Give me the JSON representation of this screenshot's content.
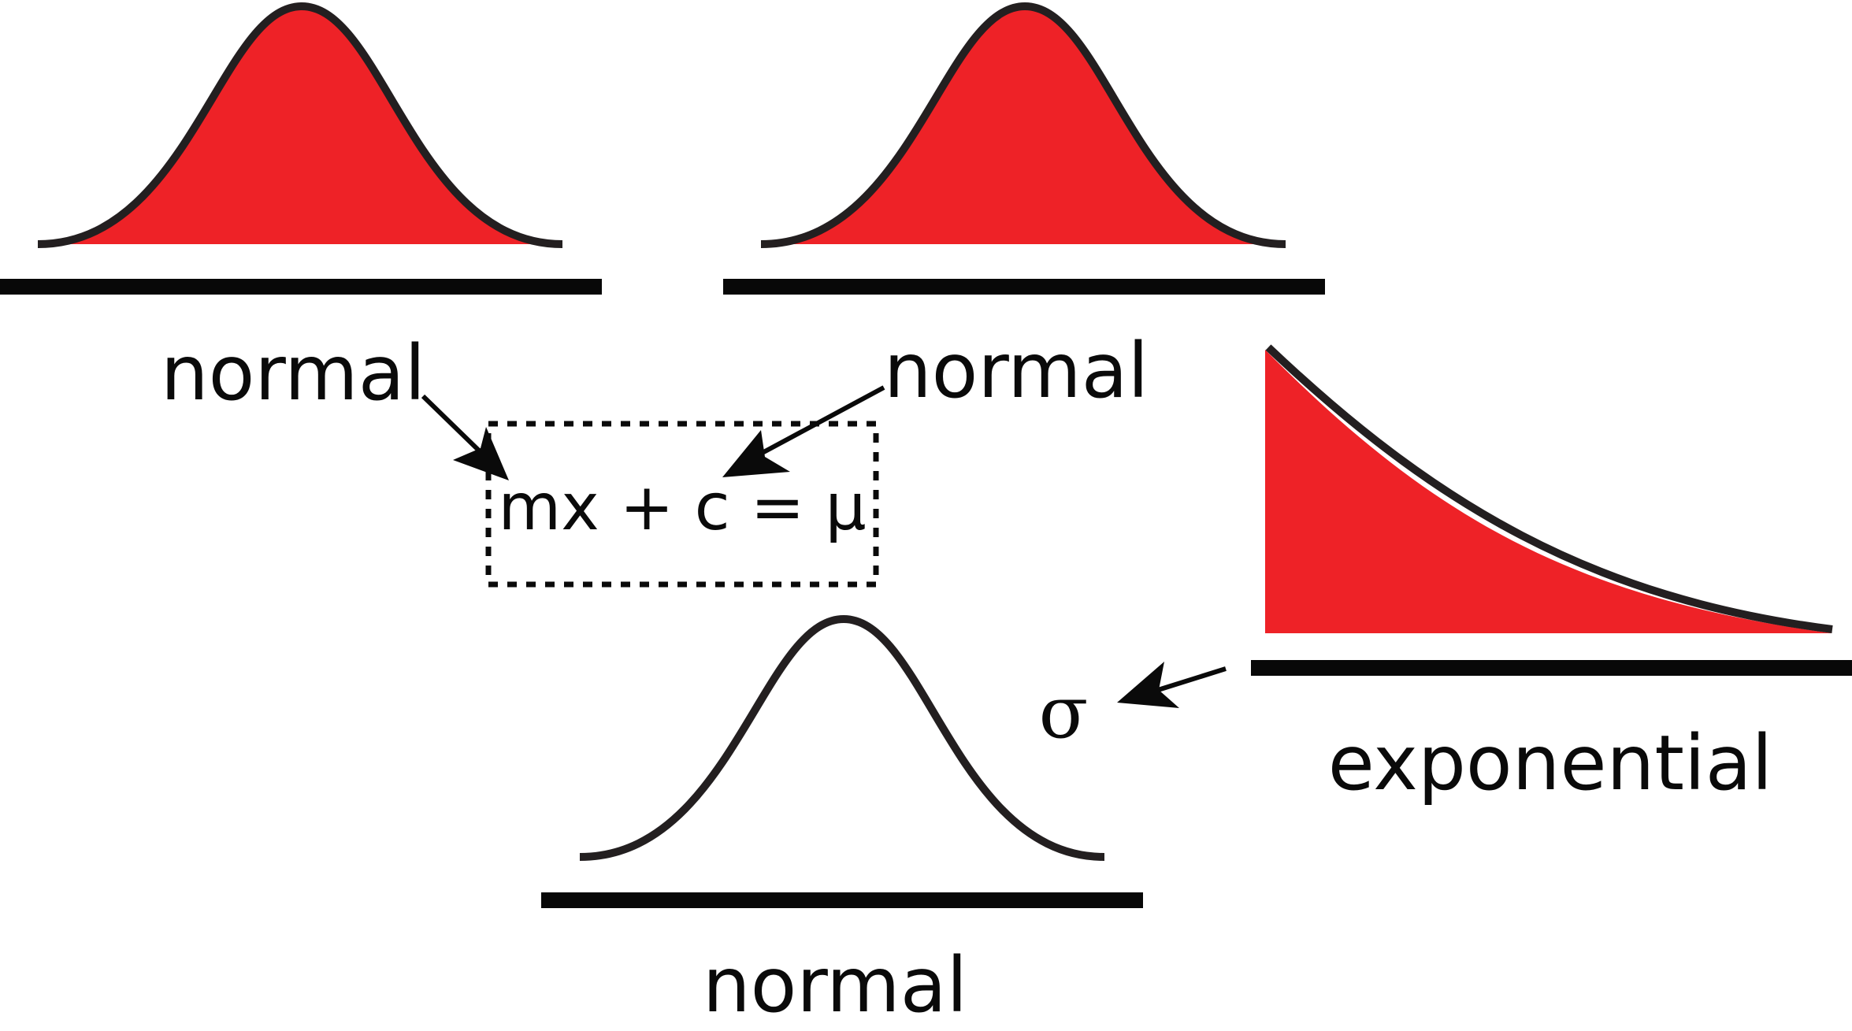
{
  "colors": {
    "fill": "#ee2227",
    "stroke": "#231f20",
    "baseline": "#080808"
  },
  "labels": {
    "normal_top_left": "normal",
    "normal_top_right": "normal",
    "normal_bottom": "normal",
    "exponential": "exponential"
  },
  "formula": "mx + c = μ",
  "sigma": "σ"
}
